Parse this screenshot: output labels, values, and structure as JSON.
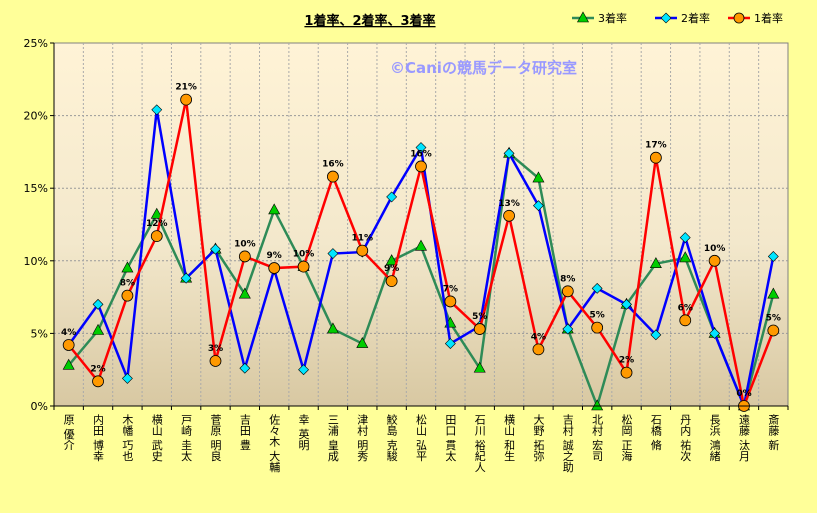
{
  "chart_data": {
    "type": "line",
    "title": "1着率、2着率、3着率",
    "watermark": "©Caniの競馬データ研究室",
    "xlabel": "",
    "ylabel": "",
    "ylim": [
      0,
      25
    ],
    "yticks": [
      "0%",
      "5%",
      "10%",
      "15%",
      "20%",
      "25%"
    ],
    "grid": true,
    "legend_position": "top-right",
    "categories": [
      "原 優介",
      "内田 博幸",
      "木幡 巧也",
      "横山 武史",
      "戸崎 圭太",
      "菅原 明良",
      "吉田 豊",
      "佐々木 大輔",
      "幸 英明",
      "三浦 皇成",
      "津村 明秀",
      "鮫島 克駿",
      "松山 弘平",
      "田口 貫太",
      "石川 裕紀人",
      "横山 和生",
      "大野 拓弥",
      "吉村 誠之助",
      "北村 宏司",
      "松岡 正海",
      "石橋 脩",
      "丹内 祐次",
      "長浜 鴻緒",
      "遠藤 汰月",
      "斎藤 新"
    ],
    "series": [
      {
        "name": "3着率",
        "color": "#2E8B57",
        "marker": "triangle",
        "marker_color": "#00CC00",
        "values": [
          2.8,
          5.2,
          9.5,
          13.2,
          8.8,
          10.8,
          7.7,
          13.5,
          9.6,
          5.3,
          4.3,
          10.0,
          11.0,
          5.7,
          2.6,
          17.4,
          15.7,
          5.3,
          0,
          7.0,
          9.8,
          10.2,
          5.0,
          0,
          7.7
        ]
      },
      {
        "name": "2着率",
        "color": "#0000FF",
        "marker": "diamond",
        "marker_color": "#00E5FF",
        "values": [
          4.2,
          7.0,
          1.9,
          20.4,
          8.8,
          10.8,
          2.6,
          9.4,
          2.5,
          10.5,
          10.6,
          14.4,
          17.8,
          4.3,
          5.5,
          17.4,
          13.8,
          5.3,
          8.1,
          7.0,
          4.9,
          11.6,
          5.0,
          0,
          10.3
        ]
      },
      {
        "name": "1着率",
        "color": "#FF0000",
        "marker": "circle",
        "marker_color": "#FF9900",
        "values": [
          4.2,
          1.7,
          7.6,
          11.7,
          21.1,
          3.1,
          10.3,
          9.5,
          9.6,
          15.8,
          10.7,
          8.6,
          16.5,
          7.2,
          5.3,
          13.1,
          3.9,
          7.9,
          5.4,
          2.3,
          17.1,
          5.9,
          10.0,
          0,
          5.2
        ],
        "data_labels": [
          "4%",
          "2%",
          "8%",
          "12%",
          "21%",
          "3%",
          "10%",
          "9%",
          "10%",
          "16%",
          "11%",
          "9%",
          "16%",
          "7%",
          "5%",
          "13%",
          "4%",
          "8%",
          "5%",
          "2%",
          "17%",
          "6%",
          "10%",
          "0%",
          "5%"
        ]
      }
    ]
  }
}
